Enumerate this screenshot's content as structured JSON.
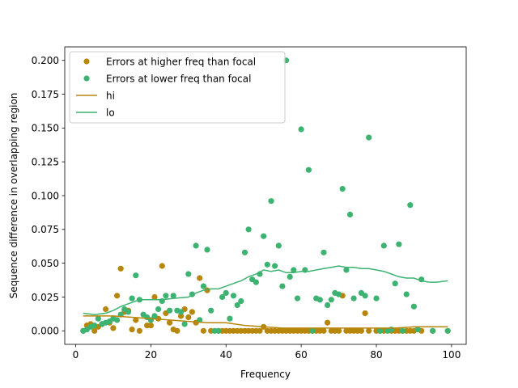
{
  "chart_data": {
    "type": "scatter",
    "title": "",
    "xlabel": "Frequency",
    "ylabel": "Sequence difference in overlapping region",
    "xlim": [
      -2.9,
      103.9
    ],
    "ylim": [
      -0.01,
      0.21
    ],
    "xticks": [
      "0",
      "20",
      "40",
      "60",
      "80",
      "100"
    ],
    "xtick_values": [
      0,
      20,
      40,
      60,
      80,
      100
    ],
    "yticks": [
      "0.000",
      "0.025",
      "0.050",
      "0.075",
      "0.100",
      "0.125",
      "0.150",
      "0.175",
      "0.200"
    ],
    "ytick_values": [
      0,
      0.025,
      0.05,
      0.075,
      0.1,
      0.125,
      0.15,
      0.175,
      0.2
    ],
    "grid": false,
    "legend_position": "top-left",
    "colors": {
      "hi": "#b8860b",
      "lo": "#3cb371"
    },
    "series": [
      {
        "name": "Errors at higher freq than focal",
        "kind": "points",
        "color": "#b8860b",
        "points": [
          [
            2,
            0
          ],
          [
            3,
            0.004
          ],
          [
            4,
            0.005
          ],
          [
            5,
            0
          ],
          [
            6,
            0.003
          ],
          [
            7,
            0.005
          ],
          [
            8,
            0.016
          ],
          [
            9,
            0.006
          ],
          [
            10,
            0.002
          ],
          [
            11,
            0.026
          ],
          [
            12,
            0.046
          ],
          [
            13,
            0.014
          ],
          [
            14,
            0.015
          ],
          [
            15,
            0.001
          ],
          [
            16,
            0.008
          ],
          [
            17,
            0
          ],
          [
            19,
            0.004
          ],
          [
            20,
            0.004
          ],
          [
            21,
            0.025
          ],
          [
            22,
            0.009
          ],
          [
            23,
            0.048
          ],
          [
            24,
            0.013
          ],
          [
            25,
            0.006
          ],
          [
            26,
            0.001
          ],
          [
            27,
            0
          ],
          [
            28,
            0.011
          ],
          [
            29,
            0.016
          ],
          [
            30,
            0.01
          ],
          [
            31,
            0.014
          ],
          [
            32,
            0.006
          ],
          [
            33,
            0.039
          ],
          [
            34,
            0
          ],
          [
            35,
            0.03
          ],
          [
            36,
            0
          ],
          [
            38,
            0
          ],
          [
            39,
            0
          ],
          [
            40,
            0
          ],
          [
            41,
            0
          ],
          [
            42,
            0
          ],
          [
            43,
            0
          ],
          [
            44,
            0
          ],
          [
            45,
            0
          ],
          [
            46,
            0
          ],
          [
            47,
            0
          ],
          [
            48,
            0
          ],
          [
            49,
            0
          ],
          [
            50,
            0.003
          ],
          [
            51,
            0
          ],
          [
            52,
            0
          ],
          [
            53,
            0
          ],
          [
            54,
            0
          ],
          [
            55,
            0
          ],
          [
            56,
            0
          ],
          [
            57,
            0
          ],
          [
            58,
            0
          ],
          [
            59,
            0
          ],
          [
            60,
            0
          ],
          [
            61,
            0
          ],
          [
            62,
            0
          ],
          [
            63,
            0
          ],
          [
            64,
            0
          ],
          [
            65,
            0
          ],
          [
            66,
            0
          ],
          [
            67,
            0.006
          ],
          [
            68,
            0
          ],
          [
            69,
            0
          ],
          [
            70,
            0
          ],
          [
            71,
            0.026
          ],
          [
            72,
            0
          ],
          [
            73,
            0
          ],
          [
            74,
            0
          ],
          [
            75,
            0
          ],
          [
            76,
            0
          ],
          [
            77,
            0.013
          ],
          [
            78,
            0
          ],
          [
            80,
            0
          ],
          [
            81,
            0
          ],
          [
            82,
            0
          ],
          [
            84,
            0
          ],
          [
            85,
            0
          ],
          [
            86,
            0
          ],
          [
            87,
            0
          ],
          [
            88,
            0
          ],
          [
            89,
            0
          ],
          [
            90,
            0
          ],
          [
            92,
            0
          ],
          [
            95,
            0
          ],
          [
            99,
            0
          ]
        ]
      },
      {
        "name": "Errors at lower freq than focal",
        "kind": "points",
        "color": "#3cb371",
        "points": [
          [
            2,
            0
          ],
          [
            3,
            0.001
          ],
          [
            4,
            0.003
          ],
          [
            5,
            0.004
          ],
          [
            6,
            0.009
          ],
          [
            7,
            0.005
          ],
          [
            8,
            0.006
          ],
          [
            9,
            0.007
          ],
          [
            10,
            0.009
          ],
          [
            11,
            0.008
          ],
          [
            12,
            0.012
          ],
          [
            13,
            0.016
          ],
          [
            14,
            0.014
          ],
          [
            15,
            0.024
          ],
          [
            16,
            0.041
          ],
          [
            17,
            0.023
          ],
          [
            18,
            0.012
          ],
          [
            19,
            0.01
          ],
          [
            20,
            0.008
          ],
          [
            21,
            0.011
          ],
          [
            22,
            0.016
          ],
          [
            23,
            0.022
          ],
          [
            24,
            0.026
          ],
          [
            25,
            0.015
          ],
          [
            26,
            0.026
          ],
          [
            27,
            0.015
          ],
          [
            28,
            0.014
          ],
          [
            29,
            0.005
          ],
          [
            30,
            0.042
          ],
          [
            31,
            0.027
          ],
          [
            32,
            0.063
          ],
          [
            33,
            0.008
          ],
          [
            34,
            0.033
          ],
          [
            35,
            0.06
          ],
          [
            36,
            0.015
          ],
          [
            37,
            0
          ],
          [
            38,
            0
          ],
          [
            39,
            0.025
          ],
          [
            40,
            0.028
          ],
          [
            41,
            0.009
          ],
          [
            42,
            0.026
          ],
          [
            43,
            0.019
          ],
          [
            44,
            0.022
          ],
          [
            45,
            0.058
          ],
          [
            46,
            0.075
          ],
          [
            47,
            0.038
          ],
          [
            48,
            0.036
          ],
          [
            49,
            0.042
          ],
          [
            50,
            0.07
          ],
          [
            51,
            0.049
          ],
          [
            52,
            0.096
          ],
          [
            53,
            0.048
          ],
          [
            54,
            0.063
          ],
          [
            55,
            0.033
          ],
          [
            56,
            0.2
          ],
          [
            57,
            0.04
          ],
          [
            58,
            0.045
          ],
          [
            59,
            0.024
          ],
          [
            60,
            0.149
          ],
          [
            61,
            0.045
          ],
          [
            62,
            0.119
          ],
          [
            63,
            0
          ],
          [
            64,
            0.024
          ],
          [
            65,
            0.023
          ],
          [
            66,
            0.058
          ],
          [
            67,
            0.019
          ],
          [
            68,
            0.023
          ],
          [
            69,
            0.028
          ],
          [
            70,
            0.027
          ],
          [
            71,
            0.105
          ],
          [
            72,
            0.045
          ],
          [
            73,
            0.086
          ],
          [
            74,
            0.024
          ],
          [
            76,
            0.028
          ],
          [
            77,
            0.026
          ],
          [
            78,
            0.143
          ],
          [
            80,
            0.024
          ],
          [
            81,
            0
          ],
          [
            82,
            0.063
          ],
          [
            83,
            0
          ],
          [
            84,
            0.001
          ],
          [
            85,
            0.035
          ],
          [
            86,
            0.064
          ],
          [
            87,
            0
          ],
          [
            88,
            0.027
          ],
          [
            89,
            0.093
          ],
          [
            90,
            0.018
          ],
          [
            91,
            0.001
          ],
          [
            92,
            0.038
          ],
          [
            95,
            0
          ],
          [
            99,
            0
          ]
        ]
      },
      {
        "name": "hi",
        "kind": "line",
        "color": "#b8860b",
        "points": [
          [
            2,
            0.011
          ],
          [
            5,
            0.011
          ],
          [
            10,
            0.011
          ],
          [
            15,
            0.01
          ],
          [
            20,
            0.009
          ],
          [
            25,
            0.008
          ],
          [
            30,
            0.007
          ],
          [
            35,
            0.006
          ],
          [
            40,
            0.006
          ],
          [
            45,
            0.004
          ],
          [
            50,
            0.003
          ],
          [
            55,
            0.002
          ],
          [
            60,
            0.002
          ],
          [
            65,
            0.002
          ],
          [
            70,
            0.002
          ],
          [
            75,
            0.002
          ],
          [
            80,
            0.002
          ],
          [
            85,
            0.002
          ],
          [
            90,
            0.003
          ],
          [
            95,
            0.003
          ],
          [
            99,
            0.003
          ]
        ]
      },
      {
        "name": "lo",
        "kind": "line",
        "color": "#3cb371",
        "points": [
          [
            2,
            0.013
          ],
          [
            5,
            0.012
          ],
          [
            8,
            0.013
          ],
          [
            10,
            0.015
          ],
          [
            12,
            0.018
          ],
          [
            14,
            0.02
          ],
          [
            17,
            0.023
          ],
          [
            20,
            0.023
          ],
          [
            23,
            0.023
          ],
          [
            26,
            0.024
          ],
          [
            30,
            0.025
          ],
          [
            32,
            0.028
          ],
          [
            34,
            0.03
          ],
          [
            36,
            0.031
          ],
          [
            38,
            0.031
          ],
          [
            40,
            0.033
          ],
          [
            42,
            0.035
          ],
          [
            44,
            0.037
          ],
          [
            46,
            0.04
          ],
          [
            48,
            0.042
          ],
          [
            50,
            0.045
          ],
          [
            52,
            0.044
          ],
          [
            54,
            0.045
          ],
          [
            56,
            0.043
          ],
          [
            58,
            0.043
          ],
          [
            60,
            0.044
          ],
          [
            62,
            0.044
          ],
          [
            64,
            0.045
          ],
          [
            66,
            0.046
          ],
          [
            68,
            0.047
          ],
          [
            70,
            0.048
          ],
          [
            72,
            0.047
          ],
          [
            74,
            0.047
          ],
          [
            76,
            0.046
          ],
          [
            78,
            0.046
          ],
          [
            80,
            0.045
          ],
          [
            82,
            0.044
          ],
          [
            84,
            0.042
          ],
          [
            86,
            0.04
          ],
          [
            88,
            0.039
          ],
          [
            90,
            0.039
          ],
          [
            92,
            0.037
          ],
          [
            94,
            0.036
          ],
          [
            96,
            0.036
          ],
          [
            99,
            0.037
          ]
        ]
      }
    ]
  }
}
